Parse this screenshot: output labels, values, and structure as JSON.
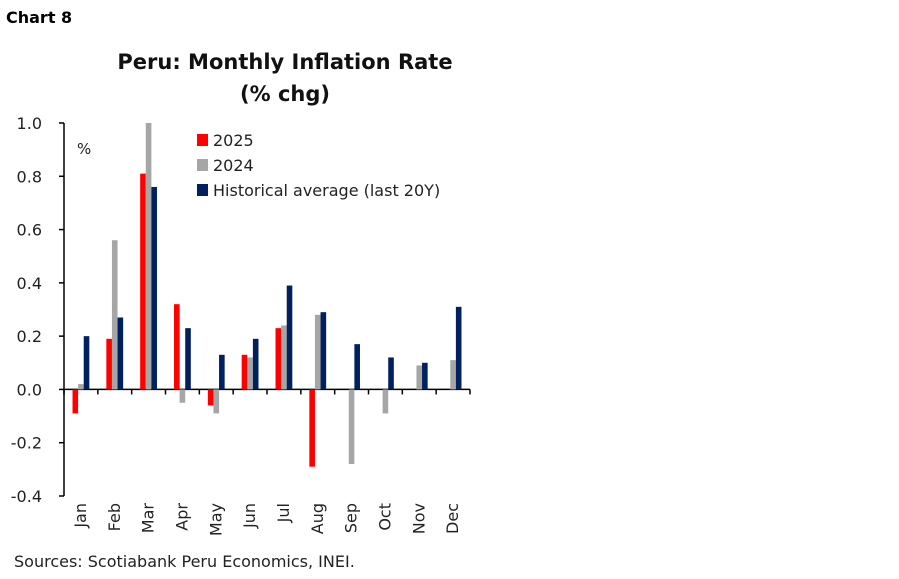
{
  "header": {
    "chart_label": "Chart 8"
  },
  "footer": {
    "source": "Sources: Scotiabank Peru Economics, INEI."
  },
  "chart_data": {
    "type": "bar",
    "title": "Peru: Monthly Inflation Rate",
    "subtitle": "(% chg)",
    "ylabel": "%",
    "xlabel": "",
    "ylim": [
      -0.4,
      1.0
    ],
    "yticks": [
      "1.0",
      "0.8",
      "0.6",
      "0.4",
      "0.2",
      "0.0",
      "-0.2",
      "-0.4"
    ],
    "grid": false,
    "legend": "top-center",
    "categories": [
      "Jan",
      "Feb",
      "Mar",
      "Apr",
      "May",
      "Jun",
      "Jul",
      "Aug",
      "Sep",
      "Oct",
      "Nov",
      "Dec"
    ],
    "series": [
      {
        "name": "2025",
        "color": "#ff0000",
        "values": [
          -0.09,
          0.19,
          0.81,
          0.32,
          -0.06,
          0.13,
          0.23,
          -0.29,
          null,
          null,
          null,
          null
        ]
      },
      {
        "name": "2024",
        "color": "#a6a6a6",
        "values": [
          0.02,
          0.56,
          1.0,
          -0.05,
          -0.09,
          0.12,
          0.24,
          0.28,
          -0.28,
          -0.09,
          0.09,
          0.11
        ]
      },
      {
        "name": "Historical average (last 20Y)",
        "color": "#002060",
        "values": [
          0.2,
          0.27,
          0.76,
          0.23,
          0.13,
          0.19,
          0.39,
          0.29,
          0.17,
          0.12,
          0.1,
          0.31
        ]
      }
    ]
  }
}
